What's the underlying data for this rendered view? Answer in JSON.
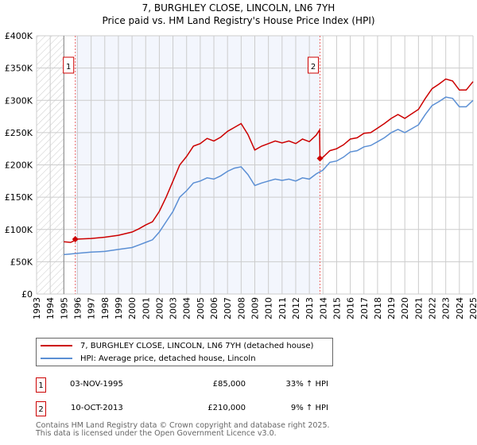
{
  "chart_data": {
    "type": "line",
    "title": "7, BURGHLEY CLOSE, LINCOLN, LN6 7YH",
    "subtitle": "Price paid vs. HM Land Registry's House Price Index (HPI)",
    "xlim": [
      1993,
      2025
    ],
    "ylim": [
      0,
      400000
    ],
    "y_ticks": [
      {
        "v": 0,
        "label": "£0"
      },
      {
        "v": 50000,
        "label": "£50K"
      },
      {
        "v": 100000,
        "label": "£100K"
      },
      {
        "v": 150000,
        "label": "£150K"
      },
      {
        "v": 200000,
        "label": "£200K"
      },
      {
        "v": 250000,
        "label": "£250K"
      },
      {
        "v": 300000,
        "label": "£300K"
      },
      {
        "v": 350000,
        "label": "£350K"
      },
      {
        "v": 400000,
        "label": "£400K"
      }
    ],
    "x_ticks": [
      "1993",
      "1994",
      "1995",
      "1996",
      "1997",
      "1998",
      "1999",
      "2000",
      "2001",
      "2002",
      "2003",
      "2004",
      "2005",
      "2006",
      "2007",
      "2008",
      "2009",
      "2010",
      "2011",
      "2012",
      "2013",
      "2014",
      "2015",
      "2016",
      "2017",
      "2018",
      "2019",
      "2020",
      "2021",
      "2022",
      "2023",
      "2024",
      "2025"
    ],
    "grid": true,
    "hatched_until": 1995,
    "shaded_range": [
      1995.84,
      2013.78
    ],
    "series": [
      {
        "name": "7, BURGHLEY CLOSE, LINCOLN, LN6 7YH (detached house)",
        "color": "#cc0000",
        "x": [
          1995,
          1995.5,
          1996,
          1997,
          1998,
          1999,
          2000,
          2000.5,
          2001,
          2001.5,
          2002,
          2002.5,
          2003,
          2003.5,
          2004,
          2004.5,
          2005,
          2005.5,
          2006,
          2006.5,
          2007,
          2007.5,
          2008,
          2008.5,
          2009,
          2009.5,
          2010,
          2010.5,
          2011,
          2011.5,
          2012,
          2012.5,
          2013,
          2013.5,
          2013.75,
          2013.78,
          2014,
          2014.5,
          2015,
          2015.5,
          2016,
          2016.5,
          2017,
          2017.5,
          2018,
          2018.5,
          2019,
          2019.5,
          2020,
          2020.5,
          2021,
          2021.5,
          2022,
          2022.5,
          2023,
          2023.5,
          2024,
          2024.5,
          2025
        ],
        "y": [
          81000,
          80000,
          85000,
          86000,
          88000,
          91000,
          96000,
          101000,
          107000,
          112000,
          128000,
          150000,
          175000,
          200000,
          213000,
          229000,
          233000,
          241000,
          237000,
          243000,
          252000,
          258000,
          264000,
          247000,
          223000,
          229000,
          233000,
          237000,
          234000,
          237000,
          233000,
          240000,
          236000,
          246000,
          254000,
          210000,
          212000,
          222000,
          225000,
          231000,
          240000,
          242000,
          249000,
          250000,
          257000,
          264000,
          272000,
          278000,
          272000,
          279000,
          286000,
          303000,
          318000,
          325000,
          333000,
          330000,
          316000,
          316000,
          329000
        ]
      },
      {
        "name": "HPI: Average price, detached house, Lincoln",
        "color": "#5b8fd4",
        "x": [
          1995,
          1995.5,
          1996,
          1997,
          1998,
          1999,
          2000,
          2000.5,
          2001,
          2001.5,
          2002,
          2002.5,
          2003,
          2003.5,
          2004,
          2004.5,
          2005,
          2005.5,
          2006,
          2006.5,
          2007,
          2007.5,
          2008,
          2008.5,
          2009,
          2009.5,
          2010,
          2010.5,
          2011,
          2011.5,
          2012,
          2012.5,
          2013,
          2013.5,
          2014,
          2014.5,
          2015,
          2015.5,
          2016,
          2016.5,
          2017,
          2017.5,
          2018,
          2018.5,
          2019,
          2019.5,
          2020,
          2020.5,
          2021,
          2021.5,
          2022,
          2022.5,
          2023,
          2023.5,
          2024,
          2024.5,
          2025
        ],
        "y": [
          61000,
          62000,
          63000,
          65000,
          66000,
          69000,
          72000,
          76000,
          80000,
          84000,
          96000,
          112000,
          128000,
          150000,
          160000,
          172000,
          175000,
          180000,
          178000,
          183000,
          190000,
          195000,
          197000,
          185000,
          168000,
          172000,
          175000,
          178000,
          176000,
          178000,
          175000,
          180000,
          178000,
          186000,
          192000,
          204000,
          206000,
          212000,
          220000,
          222000,
          228000,
          230000,
          236000,
          242000,
          250000,
          255000,
          250000,
          256000,
          262000,
          278000,
          292000,
          298000,
          305000,
          303000,
          290000,
          290000,
          300000
        ]
      }
    ],
    "sales": [
      {
        "id": "1",
        "x": 1995.84,
        "y": 85000
      },
      {
        "id": "2",
        "x": 2013.78,
        "y": 210000
      }
    ]
  },
  "legend": {
    "property": "7, BURGHLEY CLOSE, LINCOLN, LN6 7YH (detached house)",
    "hpi": "HPI: Average price, detached house, Lincoln"
  },
  "transactions": [
    {
      "id": "1",
      "date": "03-NOV-1995",
      "price": "£85,000",
      "hpi": "33% ↑ HPI"
    },
    {
      "id": "2",
      "date": "10-OCT-2013",
      "price": "£210,000",
      "hpi": "9% ↑ HPI"
    }
  ],
  "footer": {
    "line1": "Contains HM Land Registry data © Crown copyright and database right 2025.",
    "line2": "This data is licensed under the Open Government Licence v3.0."
  }
}
